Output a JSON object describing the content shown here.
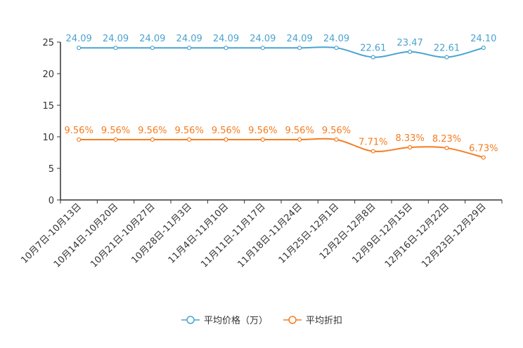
{
  "chart_data": {
    "type": "line",
    "categories": [
      "10月7日-10月13日",
      "10月14日-10月20日",
      "10月21日-10月27日",
      "10月28日-11月3日",
      "11月4日-11月10日",
      "11月11日-11月17日",
      "11月18日-11月24日",
      "11月25日-12月1日",
      "12月2日-12月8日",
      "12月9日-12月15日",
      "12月16日-12月22日",
      "12月23日-12月29日"
    ],
    "series": [
      {
        "name": "平均价格（万）",
        "color": "#4aa3d0",
        "values": [
          24.09,
          24.09,
          24.09,
          24.09,
          24.09,
          24.09,
          24.09,
          24.09,
          22.61,
          23.47,
          22.61,
          24.1
        ],
        "labels": [
          "24.09",
          "24.09",
          "24.09",
          "24.09",
          "24.09",
          "24.09",
          "24.09",
          "24.09",
          "22.61",
          "23.47",
          "22.61",
          "24.10"
        ]
      },
      {
        "name": "平均折扣",
        "color": "#f57c1f",
        "values": [
          9.56,
          9.56,
          9.56,
          9.56,
          9.56,
          9.56,
          9.56,
          9.56,
          7.71,
          8.33,
          8.23,
          6.73
        ],
        "labels": [
          "9.56%",
          "9.56%",
          "9.56%",
          "9.56%",
          "9.56%",
          "9.56%",
          "9.56%",
          "9.56%",
          "7.71%",
          "8.33%",
          "8.23%",
          "6.73%"
        ]
      }
    ],
    "ylim": [
      0,
      25
    ],
    "yticks": [
      0,
      5,
      10,
      15,
      20,
      25
    ],
    "title": "",
    "xlabel": "",
    "ylabel": "",
    "legend_position": "bottom-center",
    "grid": false
  }
}
